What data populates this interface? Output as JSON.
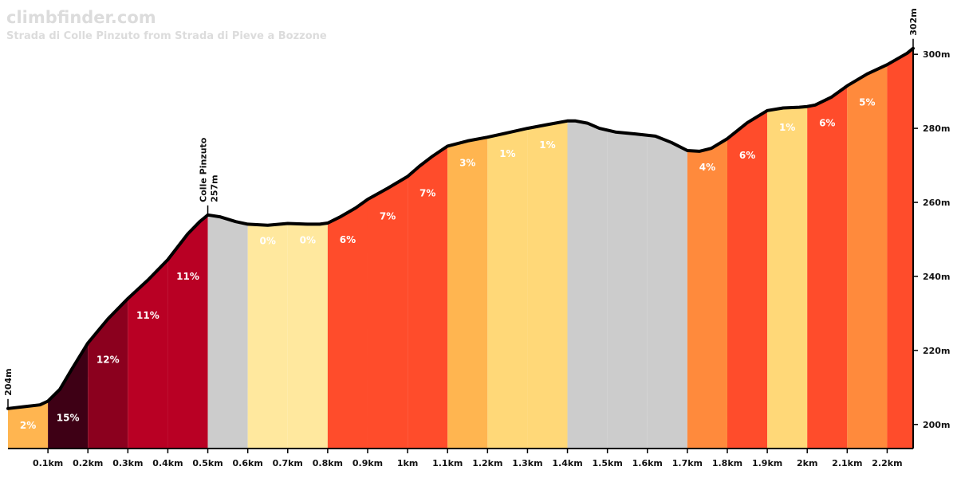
{
  "site": {
    "brand": "climbfinder.com"
  },
  "chart_data": {
    "type": "area",
    "title": "Strada di Colle Pinzuto from Strada di Pieve a Bozzone",
    "x_unit": "km",
    "y_unit": "m",
    "xlim": [
      0,
      2.27
    ],
    "ylim": [
      193.5,
      308
    ],
    "x_ticks": [
      "0.1km",
      "0.2km",
      "0.3km",
      "0.4km",
      "0.5km",
      "0.6km",
      "0.7km",
      "0.8km",
      "0.9km",
      "1km",
      "1.1km",
      "1.2km",
      "1.3km",
      "1.4km",
      "1.5km",
      "1.6km",
      "1.7km",
      "1.8km",
      "1.9km",
      "2km",
      "2.1km",
      "2.2km"
    ],
    "y_ticks": [
      "200m",
      "220m",
      "240m",
      "260m",
      "280m",
      "300m"
    ],
    "y_tick_values": [
      200,
      220,
      240,
      260,
      280,
      300
    ],
    "profile": {
      "x": [
        0,
        0.04,
        0.08,
        0.1,
        0.13,
        0.16,
        0.2,
        0.25,
        0.3,
        0.35,
        0.4,
        0.45,
        0.48,
        0.5,
        0.53,
        0.57,
        0.6,
        0.65,
        0.7,
        0.75,
        0.78,
        0.8,
        0.83,
        0.87,
        0.9,
        0.95,
        1.0,
        1.03,
        1.06,
        1.1,
        1.15,
        1.2,
        1.25,
        1.3,
        1.35,
        1.4,
        1.42,
        1.45,
        1.48,
        1.52,
        1.57,
        1.62,
        1.66,
        1.7,
        1.73,
        1.76,
        1.8,
        1.85,
        1.9,
        1.94,
        1.98,
        2.0,
        2.02,
        2.06,
        2.1,
        2.15,
        2.2,
        2.25,
        2.265
      ],
      "y": [
        204.3,
        204.8,
        205.3,
        206.3,
        209.5,
        215.0,
        222.0,
        228.5,
        234.0,
        239.0,
        244.5,
        251.5,
        254.8,
        256.6,
        256.1,
        254.8,
        254.1,
        253.8,
        254.3,
        254.1,
        254.1,
        254.4,
        256.0,
        258.5,
        260.8,
        263.8,
        267.0,
        269.8,
        272.3,
        275.2,
        276.6,
        277.6,
        278.8,
        280.0,
        281.0,
        282.0,
        282.0,
        281.4,
        280.0,
        279.0,
        278.5,
        277.9,
        276.2,
        274.0,
        273.8,
        274.6,
        277.2,
        281.5,
        284.8,
        285.5,
        285.7,
        285.9,
        286.3,
        288.4,
        291.5,
        294.7,
        297.2,
        300.3,
        301.6
      ]
    },
    "segments": [
      {
        "from": 0.0,
        "to": 0.1,
        "grade": "2%",
        "color": "#ffb550"
      },
      {
        "from": 0.1,
        "to": 0.2,
        "grade": "15%",
        "color": "#3e0015"
      },
      {
        "from": 0.2,
        "to": 0.3,
        "grade": "12%",
        "color": "#8b001e"
      },
      {
        "from": 0.3,
        "to": 0.4,
        "grade": "11%",
        "color": "#b90024"
      },
      {
        "from": 0.4,
        "to": 0.5,
        "grade": "11%",
        "color": "#b90024"
      },
      {
        "from": 0.5,
        "to": 0.6,
        "grade": "",
        "color": "#cccccc"
      },
      {
        "from": 0.6,
        "to": 0.7,
        "grade": "0%",
        "color": "#ffe89e"
      },
      {
        "from": 0.7,
        "to": 0.8,
        "grade": "0%",
        "color": "#ffe89e"
      },
      {
        "from": 0.8,
        "to": 0.9,
        "grade": "6%",
        "color": "#ff4c2b"
      },
      {
        "from": 0.9,
        "to": 1.0,
        "grade": "7%",
        "color": "#ff4c2b"
      },
      {
        "from": 1.0,
        "to": 1.1,
        "grade": "7%",
        "color": "#ff4c2b"
      },
      {
        "from": 1.1,
        "to": 1.2,
        "grade": "3%",
        "color": "#ffb550"
      },
      {
        "from": 1.2,
        "to": 1.3,
        "grade": "1%",
        "color": "#ffd878"
      },
      {
        "from": 1.3,
        "to": 1.4,
        "grade": "1%",
        "color": "#ffd878"
      },
      {
        "from": 1.4,
        "to": 1.5,
        "grade": "",
        "color": "#cccccc"
      },
      {
        "from": 1.5,
        "to": 1.6,
        "grade": "",
        "color": "#cccccc"
      },
      {
        "from": 1.6,
        "to": 1.7,
        "grade": "",
        "color": "#cccccc"
      },
      {
        "from": 1.7,
        "to": 1.8,
        "grade": "4%",
        "color": "#ff8a3c"
      },
      {
        "from": 1.8,
        "to": 1.9,
        "grade": "6%",
        "color": "#ff4c2b"
      },
      {
        "from": 1.9,
        "to": 2.0,
        "grade": "1%",
        "color": "#ffd878"
      },
      {
        "from": 2.0,
        "to": 2.1,
        "grade": "6%",
        "color": "#ff4c2b"
      },
      {
        "from": 2.1,
        "to": 2.2,
        "grade": "5%",
        "color": "#ff8a3c"
      },
      {
        "from": 2.2,
        "to": 2.265,
        "grade": "",
        "color": "#ff4c2b"
      }
    ],
    "markers": [
      {
        "x": 0.0,
        "y": 204.3,
        "label": "204m",
        "sub": ""
      },
      {
        "x": 0.5,
        "y": 256.6,
        "label": "Colle Pinzuto",
        "sub": "257m"
      },
      {
        "x": 2.265,
        "y": 301.6,
        "label": "302m",
        "sub": ""
      }
    ],
    "grid": false,
    "legend": "none"
  }
}
